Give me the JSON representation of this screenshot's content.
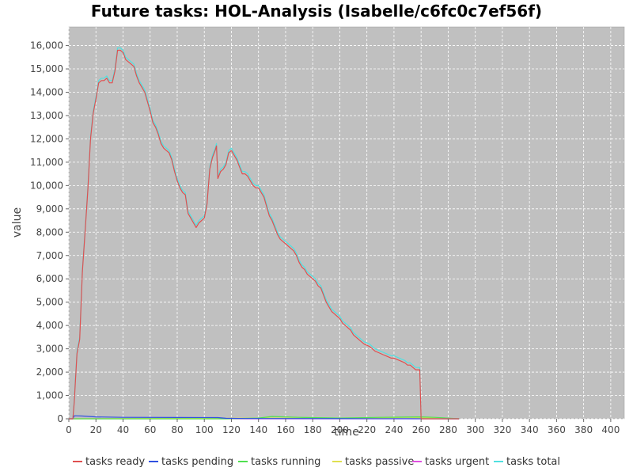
{
  "chart_data": {
    "type": "line",
    "title": "Future tasks: HOL-Analysis (Isabelle/c6fc0c7ef56f)",
    "xlabel": "time",
    "ylabel": "value",
    "xlim": [
      0,
      410
    ],
    "ylim": [
      0,
      16800
    ],
    "xticks": [
      0,
      20,
      40,
      60,
      80,
      100,
      120,
      140,
      160,
      180,
      200,
      220,
      240,
      260,
      280,
      300,
      320,
      340,
      360,
      380,
      400
    ],
    "xtick_labels": [
      "0",
      "20",
      "40",
      "60",
      "80",
      "100",
      "120",
      "140",
      "160",
      "180",
      "200",
      "220",
      "240",
      "260",
      "280",
      "300",
      "320",
      "340",
      "360",
      "380",
      "400"
    ],
    "yticks": [
      0,
      1000,
      2000,
      3000,
      4000,
      5000,
      6000,
      7000,
      8000,
      9000,
      10000,
      11000,
      12000,
      13000,
      14000,
      15000,
      16000
    ],
    "ytick_labels": [
      "0",
      "1,000",
      "2,000",
      "3,000",
      "4,000",
      "5,000",
      "6,000",
      "7,000",
      "8,000",
      "9,000",
      "10,000",
      "11,000",
      "12,000",
      "13,000",
      "14,000",
      "15,000",
      "16,000"
    ],
    "grid": true,
    "legend_position": "bottom",
    "series": [
      {
        "name": "tasks ready",
        "color": "#e05050",
        "points": [
          [
            0,
            0
          ],
          [
            3,
            0
          ],
          [
            4,
            700
          ],
          [
            6,
            2800
          ],
          [
            8,
            3400
          ],
          [
            10,
            6300
          ],
          [
            12,
            8000
          ],
          [
            14,
            9800
          ],
          [
            16,
            12000
          ],
          [
            18,
            13100
          ],
          [
            20,
            13700
          ],
          [
            22,
            14400
          ],
          [
            24,
            14500
          ],
          [
            26,
            14500
          ],
          [
            28,
            14600
          ],
          [
            30,
            14400
          ],
          [
            32,
            14400
          ],
          [
            34,
            14900
          ],
          [
            36,
            15800
          ],
          [
            38,
            15800
          ],
          [
            40,
            15700
          ],
          [
            42,
            15400
          ],
          [
            44,
            15300
          ],
          [
            46,
            15200
          ],
          [
            48,
            15100
          ],
          [
            50,
            14700
          ],
          [
            52,
            14400
          ],
          [
            54,
            14200
          ],
          [
            56,
            14000
          ],
          [
            58,
            13600
          ],
          [
            60,
            13200
          ],
          [
            62,
            12700
          ],
          [
            64,
            12500
          ],
          [
            66,
            12200
          ],
          [
            68,
            11800
          ],
          [
            70,
            11600
          ],
          [
            72,
            11500
          ],
          [
            74,
            11400
          ],
          [
            76,
            11100
          ],
          [
            78,
            10600
          ],
          [
            80,
            10200
          ],
          [
            82,
            9900
          ],
          [
            84,
            9700
          ],
          [
            86,
            9600
          ],
          [
            88,
            8800
          ],
          [
            90,
            8600
          ],
          [
            92,
            8400
          ],
          [
            94,
            8200
          ],
          [
            96,
            8400
          ],
          [
            98,
            8500
          ],
          [
            100,
            8600
          ],
          [
            102,
            9200
          ],
          [
            104,
            10700
          ],
          [
            106,
            11200
          ],
          [
            108,
            11500
          ],
          [
            109,
            11700
          ],
          [
            110,
            10300
          ],
          [
            112,
            10600
          ],
          [
            114,
            10700
          ],
          [
            116,
            10900
          ],
          [
            118,
            11400
          ],
          [
            120,
            11500
          ],
          [
            122,
            11300
          ],
          [
            124,
            11100
          ],
          [
            126,
            10800
          ],
          [
            128,
            10500
          ],
          [
            130,
            10500
          ],
          [
            132,
            10400
          ],
          [
            134,
            10200
          ],
          [
            136,
            10000
          ],
          [
            138,
            9900
          ],
          [
            140,
            9900
          ],
          [
            142,
            9700
          ],
          [
            144,
            9500
          ],
          [
            146,
            9100
          ],
          [
            148,
            8700
          ],
          [
            150,
            8500
          ],
          [
            152,
            8200
          ],
          [
            154,
            7900
          ],
          [
            156,
            7700
          ],
          [
            158,
            7600
          ],
          [
            160,
            7500
          ],
          [
            162,
            7400
          ],
          [
            164,
            7300
          ],
          [
            166,
            7200
          ],
          [
            168,
            7000
          ],
          [
            170,
            6700
          ],
          [
            172,
            6500
          ],
          [
            174,
            6400
          ],
          [
            176,
            6200
          ],
          [
            178,
            6100
          ],
          [
            180,
            6000
          ],
          [
            182,
            5900
          ],
          [
            184,
            5700
          ],
          [
            186,
            5600
          ],
          [
            188,
            5300
          ],
          [
            190,
            5000
          ],
          [
            192,
            4800
          ],
          [
            194,
            4600
          ],
          [
            196,
            4500
          ],
          [
            198,
            4400
          ],
          [
            200,
            4300
          ],
          [
            202,
            4100
          ],
          [
            204,
            4000
          ],
          [
            206,
            3900
          ],
          [
            208,
            3800
          ],
          [
            210,
            3600
          ],
          [
            212,
            3500
          ],
          [
            214,
            3400
          ],
          [
            216,
            3300
          ],
          [
            218,
            3200
          ],
          [
            220,
            3150
          ],
          [
            222,
            3100
          ],
          [
            224,
            3000
          ],
          [
            226,
            2900
          ],
          [
            228,
            2850
          ],
          [
            230,
            2800
          ],
          [
            232,
            2750
          ],
          [
            234,
            2700
          ],
          [
            236,
            2650
          ],
          [
            238,
            2600
          ],
          [
            240,
            2600
          ],
          [
            242,
            2550
          ],
          [
            244,
            2500
          ],
          [
            246,
            2450
          ],
          [
            248,
            2400
          ],
          [
            250,
            2300
          ],
          [
            252,
            2300
          ],
          [
            254,
            2200
          ],
          [
            256,
            2100
          ],
          [
            258,
            2100
          ],
          [
            259,
            2100
          ],
          [
            260,
            0
          ],
          [
            272,
            0
          ],
          [
            288,
            0
          ]
        ]
      },
      {
        "name": "tasks pending",
        "color": "#3050e0",
        "points": [
          [
            0,
            0
          ],
          [
            3,
            0
          ],
          [
            4,
            130
          ],
          [
            10,
            120
          ],
          [
            20,
            80
          ],
          [
            40,
            60
          ],
          [
            80,
            55
          ],
          [
            110,
            50
          ],
          [
            116,
            20
          ],
          [
            130,
            10
          ],
          [
            288,
            0
          ]
        ]
      },
      {
        "name": "tasks running",
        "color": "#50e050",
        "points": [
          [
            0,
            0
          ],
          [
            116,
            0
          ],
          [
            140,
            30
          ],
          [
            150,
            100
          ],
          [
            170,
            60
          ],
          [
            200,
            30
          ],
          [
            230,
            60
          ],
          [
            260,
            80
          ],
          [
            270,
            60
          ],
          [
            288,
            0
          ]
        ]
      },
      {
        "name": "tasks passive",
        "color": "#e0e050",
        "points": [
          [
            0,
            0
          ],
          [
            150,
            30
          ],
          [
            170,
            20
          ],
          [
            230,
            40
          ],
          [
            250,
            60
          ],
          [
            260,
            40
          ],
          [
            288,
            0
          ]
        ]
      },
      {
        "name": "tasks urgent",
        "color": "#e050e0",
        "points": [
          [
            0,
            0
          ],
          [
            288,
            0
          ]
        ]
      },
      {
        "name": "tasks total",
        "color": "#50e0e0",
        "points": [
          [
            0,
            0
          ],
          [
            3,
            0
          ],
          [
            4,
            830
          ],
          [
            6,
            2900
          ],
          [
            8,
            3500
          ],
          [
            10,
            6400
          ],
          [
            12,
            8100
          ],
          [
            14,
            9900
          ],
          [
            16,
            12100
          ],
          [
            18,
            13200
          ],
          [
            20,
            13800
          ],
          [
            22,
            14500
          ],
          [
            24,
            14600
          ],
          [
            26,
            14600
          ],
          [
            28,
            14700
          ],
          [
            30,
            14500
          ],
          [
            32,
            14500
          ],
          [
            34,
            15000
          ],
          [
            36,
            15900
          ],
          [
            38,
            15900
          ],
          [
            40,
            15800
          ],
          [
            42,
            15500
          ],
          [
            44,
            15400
          ],
          [
            46,
            15300
          ],
          [
            48,
            15200
          ],
          [
            50,
            14800
          ],
          [
            52,
            14500
          ],
          [
            54,
            14300
          ],
          [
            56,
            14100
          ],
          [
            58,
            13700
          ],
          [
            60,
            13300
          ],
          [
            62,
            12800
          ],
          [
            64,
            12600
          ],
          [
            66,
            12300
          ],
          [
            68,
            11900
          ],
          [
            70,
            11700
          ],
          [
            72,
            11600
          ],
          [
            74,
            11500
          ],
          [
            76,
            11200
          ],
          [
            78,
            10700
          ],
          [
            80,
            10300
          ],
          [
            82,
            10000
          ],
          [
            84,
            9800
          ],
          [
            86,
            9700
          ],
          [
            88,
            8900
          ],
          [
            90,
            8700
          ],
          [
            92,
            8500
          ],
          [
            94,
            8300
          ],
          [
            96,
            8500
          ],
          [
            98,
            8600
          ],
          [
            100,
            8700
          ],
          [
            102,
            9300
          ],
          [
            104,
            10800
          ],
          [
            106,
            11300
          ],
          [
            108,
            11600
          ],
          [
            109,
            11800
          ],
          [
            110,
            10400
          ],
          [
            112,
            10700
          ],
          [
            114,
            10800
          ],
          [
            116,
            11000
          ],
          [
            118,
            11500
          ],
          [
            120,
            11600
          ],
          [
            122,
            11400
          ],
          [
            124,
            11200
          ],
          [
            126,
            10900
          ],
          [
            128,
            10600
          ],
          [
            130,
            10600
          ],
          [
            132,
            10500
          ],
          [
            134,
            10300
          ],
          [
            136,
            10100
          ],
          [
            138,
            10000
          ],
          [
            140,
            10000
          ],
          [
            142,
            9800
          ],
          [
            144,
            9600
          ],
          [
            146,
            9200
          ],
          [
            148,
            8800
          ],
          [
            150,
            8600
          ],
          [
            152,
            8300
          ],
          [
            154,
            8000
          ],
          [
            156,
            7800
          ],
          [
            158,
            7700
          ],
          [
            160,
            7600
          ],
          [
            162,
            7500
          ],
          [
            164,
            7400
          ],
          [
            166,
            7300
          ],
          [
            168,
            7100
          ],
          [
            170,
            6800
          ],
          [
            172,
            6600
          ],
          [
            174,
            6500
          ],
          [
            176,
            6300
          ],
          [
            178,
            6200
          ],
          [
            180,
            6100
          ],
          [
            182,
            6000
          ],
          [
            184,
            5800
          ],
          [
            186,
            5700
          ],
          [
            188,
            5400
          ],
          [
            190,
            5100
          ],
          [
            192,
            4900
          ],
          [
            194,
            4700
          ],
          [
            196,
            4600
          ],
          [
            198,
            4500
          ],
          [
            200,
            4400
          ],
          [
            202,
            4200
          ],
          [
            204,
            4100
          ],
          [
            206,
            4000
          ],
          [
            208,
            3900
          ],
          [
            210,
            3700
          ],
          [
            212,
            3600
          ],
          [
            214,
            3500
          ],
          [
            216,
            3400
          ],
          [
            218,
            3300
          ],
          [
            220,
            3250
          ],
          [
            222,
            3200
          ],
          [
            224,
            3100
          ],
          [
            226,
            3000
          ],
          [
            228,
            2950
          ],
          [
            230,
            2900
          ],
          [
            232,
            2850
          ],
          [
            234,
            2800
          ],
          [
            236,
            2750
          ],
          [
            238,
            2700
          ],
          [
            240,
            2700
          ],
          [
            242,
            2650
          ],
          [
            244,
            2600
          ],
          [
            246,
            2550
          ],
          [
            248,
            2500
          ],
          [
            250,
            2400
          ],
          [
            252,
            2400
          ],
          [
            254,
            2300
          ],
          [
            256,
            2200
          ],
          [
            258,
            2200
          ],
          [
            259,
            2200
          ],
          [
            260,
            0
          ],
          [
            288,
            0
          ]
        ]
      }
    ]
  }
}
